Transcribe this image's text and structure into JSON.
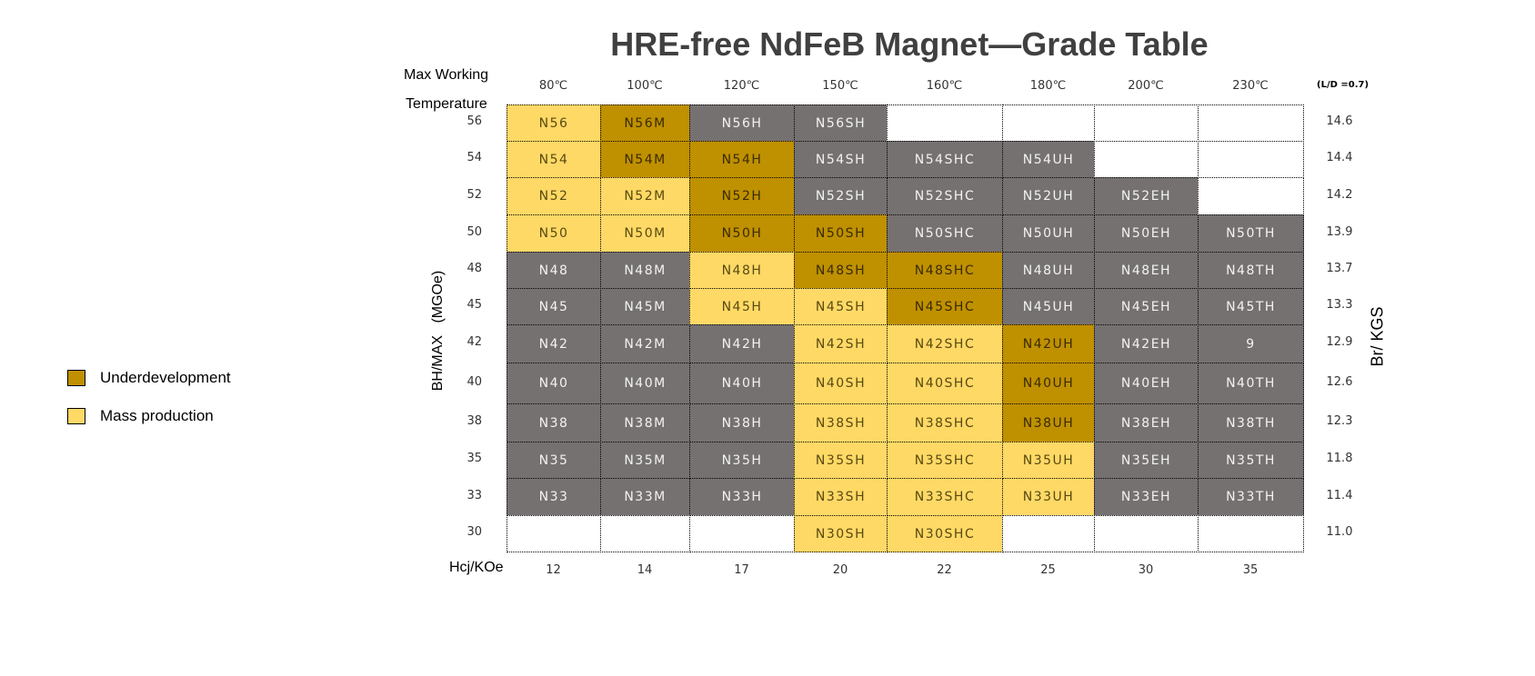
{
  "chart_data": {
    "type": "table",
    "title": "HRE-free NdFeB Magnet—Grade Table",
    "temp_label_1": "Max Working",
    "temp_label_2": "Temperature",
    "temperatures": [
      "80℃",
      "100℃",
      "120℃",
      "150℃",
      "160℃",
      "180℃",
      "200℃",
      "230℃"
    ],
    "ld_note": "(L/D =0.7)",
    "bhmax_label": "BH/MAX   (MGOe)",
    "br_label": "Br/ KGS",
    "hcj_label": "Hcj/KOe",
    "hcj": [
      "12",
      "14",
      "17",
      "20",
      "22",
      "25",
      "30",
      "35"
    ],
    "bhmax": [
      "56",
      "54",
      "52",
      "50",
      "48",
      "45",
      "42",
      "40",
      "38",
      "35",
      "33",
      "30"
    ],
    "br": [
      "14.6",
      "14.4",
      "14.2",
      "13.9",
      "13.7",
      "13.3",
      "12.9",
      "12.6",
      "12.3",
      "11.8",
      "11.4",
      "11.0"
    ],
    "rows": [
      {
        "labels": [
          "N56",
          "N56M",
          "N56H",
          "N56SH",
          "",
          "",
          "",
          ""
        ],
        "status": [
          "y",
          "g",
          "x",
          "x",
          "e",
          "e",
          "e",
          "e"
        ]
      },
      {
        "labels": [
          "N54",
          "N54M",
          "N54H",
          "N54SH",
          "N54SHC",
          "N54UH",
          "",
          ""
        ],
        "status": [
          "y",
          "g",
          "g",
          "x",
          "x",
          "x",
          "e",
          "e"
        ]
      },
      {
        "labels": [
          "N52",
          "N52M",
          "N52H",
          "N52SH",
          "N52SHC",
          "N52UH",
          "N52EH",
          ""
        ],
        "status": [
          "y",
          "y",
          "g",
          "x",
          "x",
          "x",
          "x",
          "e"
        ]
      },
      {
        "labels": [
          "N50",
          "N50M",
          "N50H",
          "N50SH",
          "N50SHC",
          "N50UH",
          "N50EH",
          "N50TH"
        ],
        "status": [
          "y",
          "y",
          "g",
          "g",
          "x",
          "x",
          "x",
          "x"
        ]
      },
      {
        "labels": [
          "N48",
          "N48M",
          "N48H",
          "N48SH",
          "N48SHC",
          "N48UH",
          "N48EH",
          "N48TH"
        ],
        "status": [
          "x",
          "x",
          "y",
          "g",
          "g",
          "x",
          "x",
          "x"
        ]
      },
      {
        "labels": [
          "N45",
          "N45M",
          "N45H",
          "N45SH",
          "N45SHC",
          "N45UH",
          "N45EH",
          "N45TH"
        ],
        "status": [
          "x",
          "x",
          "y",
          "y",
          "g",
          "x",
          "x",
          "x"
        ]
      },
      {
        "labels": [
          "N42",
          "N42M",
          "N42H",
          "N42SH",
          "N42SHC",
          "N42UH",
          "N42EH",
          "9"
        ],
        "status": [
          "x",
          "x",
          "x",
          "y",
          "y",
          "g",
          "x",
          "x"
        ]
      },
      {
        "labels": [
          "N40",
          "N40M",
          "N40H",
          "N40SH",
          "N40SHC",
          "N40UH",
          "N40EH",
          "N40TH"
        ],
        "status": [
          "x",
          "x",
          "x",
          "y",
          "y",
          "g",
          "x",
          "x"
        ]
      },
      {
        "labels": [
          "N38",
          "N38M",
          "N38H",
          "N38SH",
          "N38SHC",
          "N38UH",
          "N38EH",
          "N38TH"
        ],
        "status": [
          "x",
          "x",
          "x",
          "y",
          "y",
          "g",
          "x",
          "x"
        ]
      },
      {
        "labels": [
          "N35",
          "N35M",
          "N35H",
          "N35SH",
          "N35SHC",
          "N35UH",
          "N35EH",
          "N35TH"
        ],
        "status": [
          "x",
          "x",
          "x",
          "y",
          "y",
          "y",
          "x",
          "x"
        ]
      },
      {
        "labels": [
          "N33",
          "N33M",
          "N33H",
          "N33SH",
          "N33SHC",
          "N33UH",
          "N33EH",
          "N33TH"
        ],
        "status": [
          "x",
          "x",
          "x",
          "y",
          "y",
          "y",
          "x",
          "x"
        ]
      },
      {
        "labels": [
          "",
          "",
          "",
          "N30SH",
          "N30SHC",
          "",
          "",
          ""
        ],
        "status": [
          "e",
          "e",
          "e",
          "y",
          "y",
          "e",
          "e",
          "e"
        ]
      }
    ],
    "legend": [
      {
        "label": "Underdevelopment",
        "color": "#BF9000"
      },
      {
        "label": "Mass production",
        "color": "#FFD966"
      }
    ]
  }
}
